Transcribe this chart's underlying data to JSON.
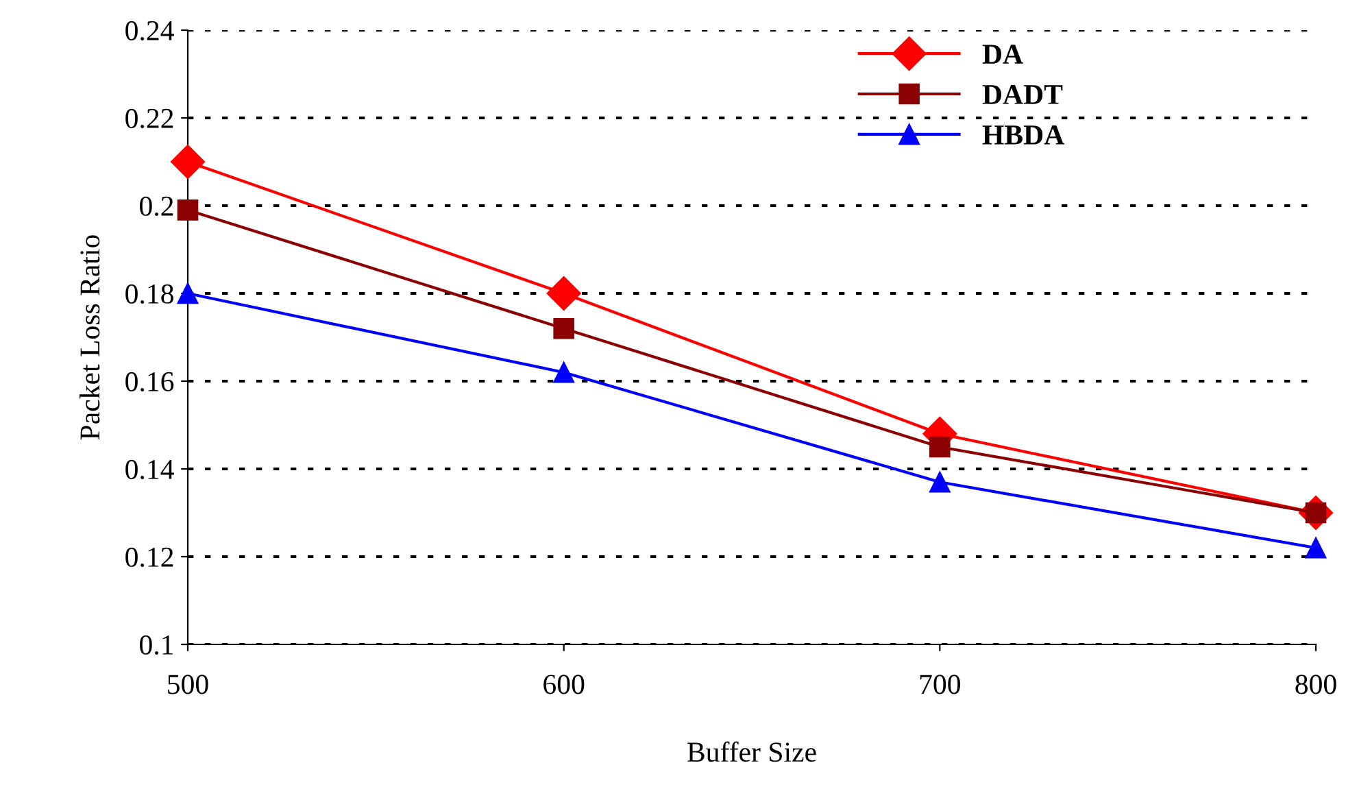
{
  "chart_data": {
    "type": "line",
    "xlabel": "Buffer Size",
    "ylabel": "Packet Loss Ratio",
    "x": [
      500,
      600,
      700,
      800
    ],
    "series": [
      {
        "name": "DA",
        "color": "#ff0000",
        "marker": "diamond",
        "values": [
          0.21,
          0.18,
          0.148,
          0.13
        ]
      },
      {
        "name": "DADT",
        "color": "#8b0000",
        "marker": "square",
        "values": [
          0.199,
          0.172,
          0.145,
          0.13
        ]
      },
      {
        "name": "HBDA",
        "color": "#0000ff",
        "marker": "triangle",
        "values": [
          0.18,
          0.162,
          0.137,
          0.122
        ]
      }
    ],
    "xlim": [
      500,
      800
    ],
    "xticks": [
      500,
      600,
      700,
      800
    ],
    "ylim": [
      0.1,
      0.24
    ],
    "yticks": [
      {
        "value": 0.1,
        "label": "0.1"
      },
      0.12,
      0.14,
      0.16,
      0.18,
      {
        "value": 0.2,
        "label": "0.2"
      },
      0.22,
      0.24
    ],
    "grid": "y",
    "legend": "top right",
    "line_style": "solid"
  }
}
